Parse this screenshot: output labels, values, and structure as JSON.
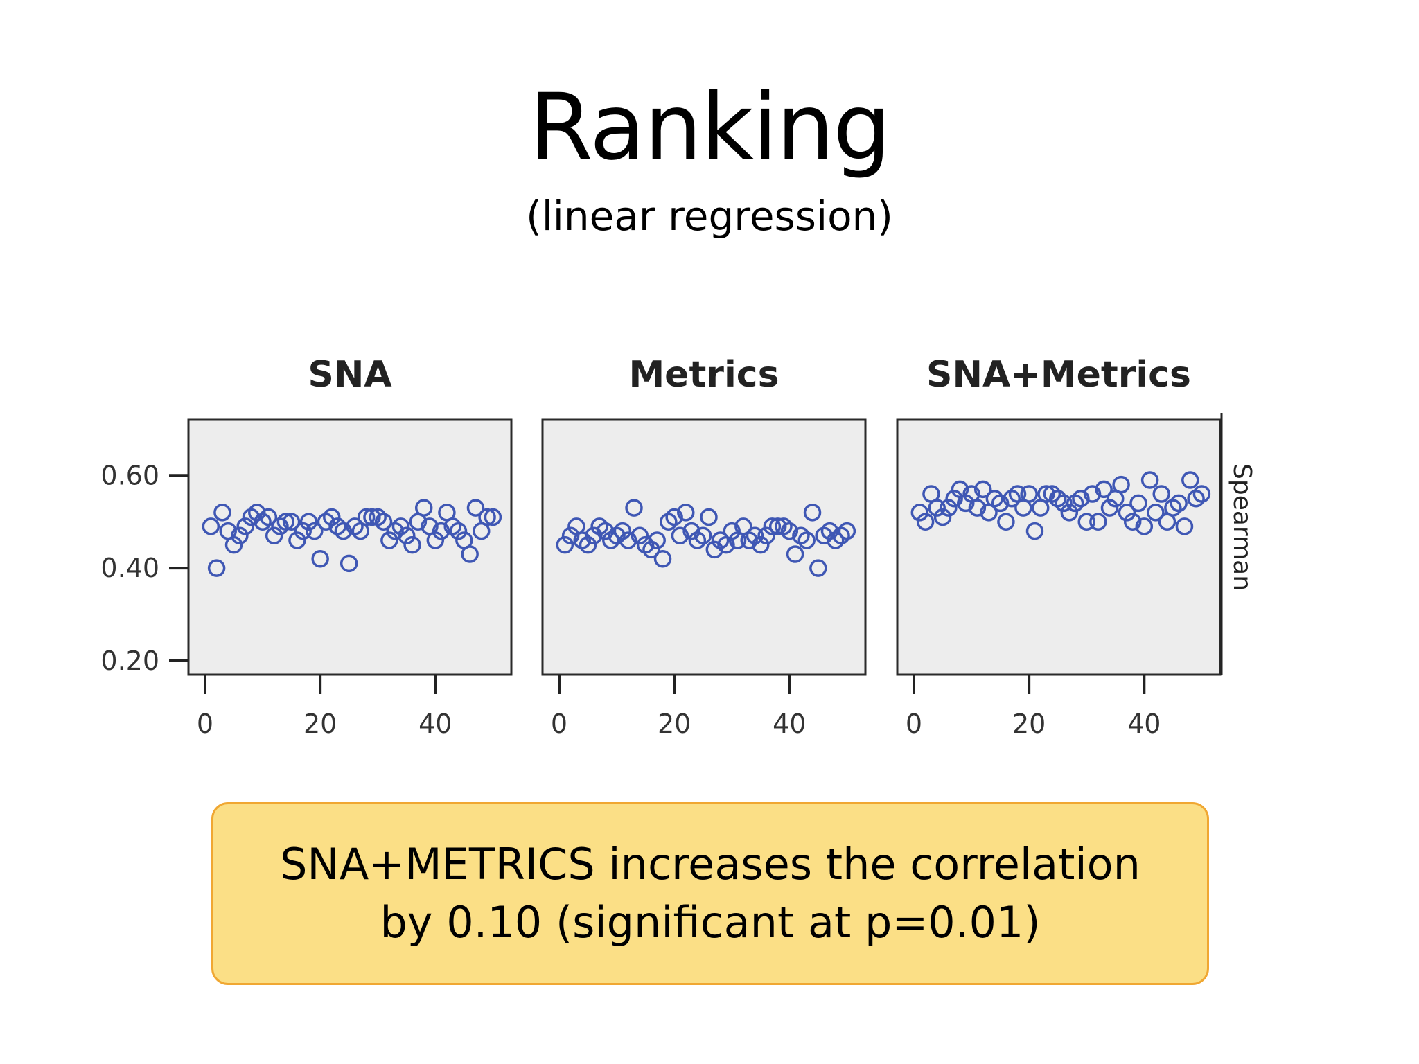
{
  "slide": {
    "title": "Ranking",
    "subtitle": "(linear regression)",
    "callout_line1": "SNA+METRICS increases the correlation",
    "callout_line2": "by 0.10 (significant at p=0.01)"
  },
  "colors": {
    "marker": "#3f57b4",
    "panel_bg": "#ededed",
    "callout_bg": "#fbdf86",
    "callout_border": "#f0a732"
  },
  "chart_data": {
    "type": "scatter",
    "ylabel": "Spearman",
    "xlabel": "",
    "xlim": [
      0,
      52
    ],
    "ylim": [
      0.17,
      0.72
    ],
    "xticks": [
      "0",
      "20",
      "40"
    ],
    "xtick_values": [
      0,
      20,
      40
    ],
    "yticks": [
      "0.20",
      "0.40",
      "0.60"
    ],
    "ytick_values": [
      0.2,
      0.4,
      0.6
    ],
    "marker": "open-circle",
    "panels": [
      {
        "name": "SNA",
        "x": [
          1,
          2,
          3,
          4,
          5,
          6,
          7,
          8,
          9,
          10,
          11,
          12,
          13,
          14,
          15,
          16,
          17,
          18,
          19,
          20,
          21,
          22,
          23,
          24,
          25,
          26,
          27,
          28,
          29,
          30,
          31,
          32,
          33,
          34,
          35,
          36,
          37,
          38,
          39,
          40,
          41,
          42,
          43,
          44,
          45,
          46,
          47,
          48,
          49,
          50
        ],
        "y": [
          0.49,
          0.4,
          0.52,
          0.48,
          0.45,
          0.47,
          0.49,
          0.51,
          0.52,
          0.5,
          0.51,
          0.47,
          0.49,
          0.5,
          0.5,
          0.46,
          0.48,
          0.5,
          0.48,
          0.42,
          0.5,
          0.51,
          0.49,
          0.48,
          0.41,
          0.49,
          0.48,
          0.51,
          0.51,
          0.51,
          0.5,
          0.46,
          0.48,
          0.49,
          0.47,
          0.45,
          0.5,
          0.53,
          0.49,
          0.46,
          0.48,
          0.52,
          0.49,
          0.48,
          0.46,
          0.43,
          0.53,
          0.48,
          0.51,
          0.51
        ]
      },
      {
        "name": "Metrics",
        "x": [
          1,
          2,
          3,
          4,
          5,
          6,
          7,
          8,
          9,
          10,
          11,
          12,
          13,
          14,
          15,
          16,
          17,
          18,
          19,
          20,
          21,
          22,
          23,
          24,
          25,
          26,
          27,
          28,
          29,
          30,
          31,
          32,
          33,
          34,
          35,
          36,
          37,
          38,
          39,
          40,
          41,
          42,
          43,
          44,
          45,
          46,
          47,
          48,
          49,
          50
        ],
        "y": [
          0.45,
          0.47,
          0.49,
          0.46,
          0.45,
          0.47,
          0.49,
          0.48,
          0.46,
          0.47,
          0.48,
          0.46,
          0.53,
          0.47,
          0.45,
          0.44,
          0.46,
          0.42,
          0.5,
          0.51,
          0.47,
          0.52,
          0.48,
          0.46,
          0.47,
          0.51,
          0.44,
          0.46,
          0.45,
          0.48,
          0.46,
          0.49,
          0.46,
          0.47,
          0.45,
          0.47,
          0.49,
          0.49,
          0.49,
          0.48,
          0.43,
          0.47,
          0.46,
          0.52,
          0.4,
          0.47,
          0.48,
          0.46,
          0.47,
          0.48
        ]
      },
      {
        "name": "SNA+Metrics",
        "x": [
          1,
          2,
          3,
          4,
          5,
          6,
          7,
          8,
          9,
          10,
          11,
          12,
          13,
          14,
          15,
          16,
          17,
          18,
          19,
          20,
          21,
          22,
          23,
          24,
          25,
          26,
          27,
          28,
          29,
          30,
          31,
          32,
          33,
          34,
          35,
          36,
          37,
          38,
          39,
          40,
          41,
          42,
          43,
          44,
          45,
          46,
          47,
          48,
          49,
          50
        ],
        "y": [
          0.52,
          0.5,
          0.56,
          0.53,
          0.51,
          0.53,
          0.55,
          0.57,
          0.54,
          0.56,
          0.53,
          0.57,
          0.52,
          0.55,
          0.54,
          0.5,
          0.55,
          0.56,
          0.53,
          0.56,
          0.48,
          0.53,
          0.56,
          0.56,
          0.55,
          0.54,
          0.52,
          0.54,
          0.55,
          0.5,
          0.56,
          0.5,
          0.57,
          0.53,
          0.55,
          0.58,
          0.52,
          0.5,
          0.54,
          0.49,
          0.59,
          0.52,
          0.56,
          0.5,
          0.53,
          0.54,
          0.49,
          0.59,
          0.55,
          0.56
        ]
      }
    ]
  }
}
